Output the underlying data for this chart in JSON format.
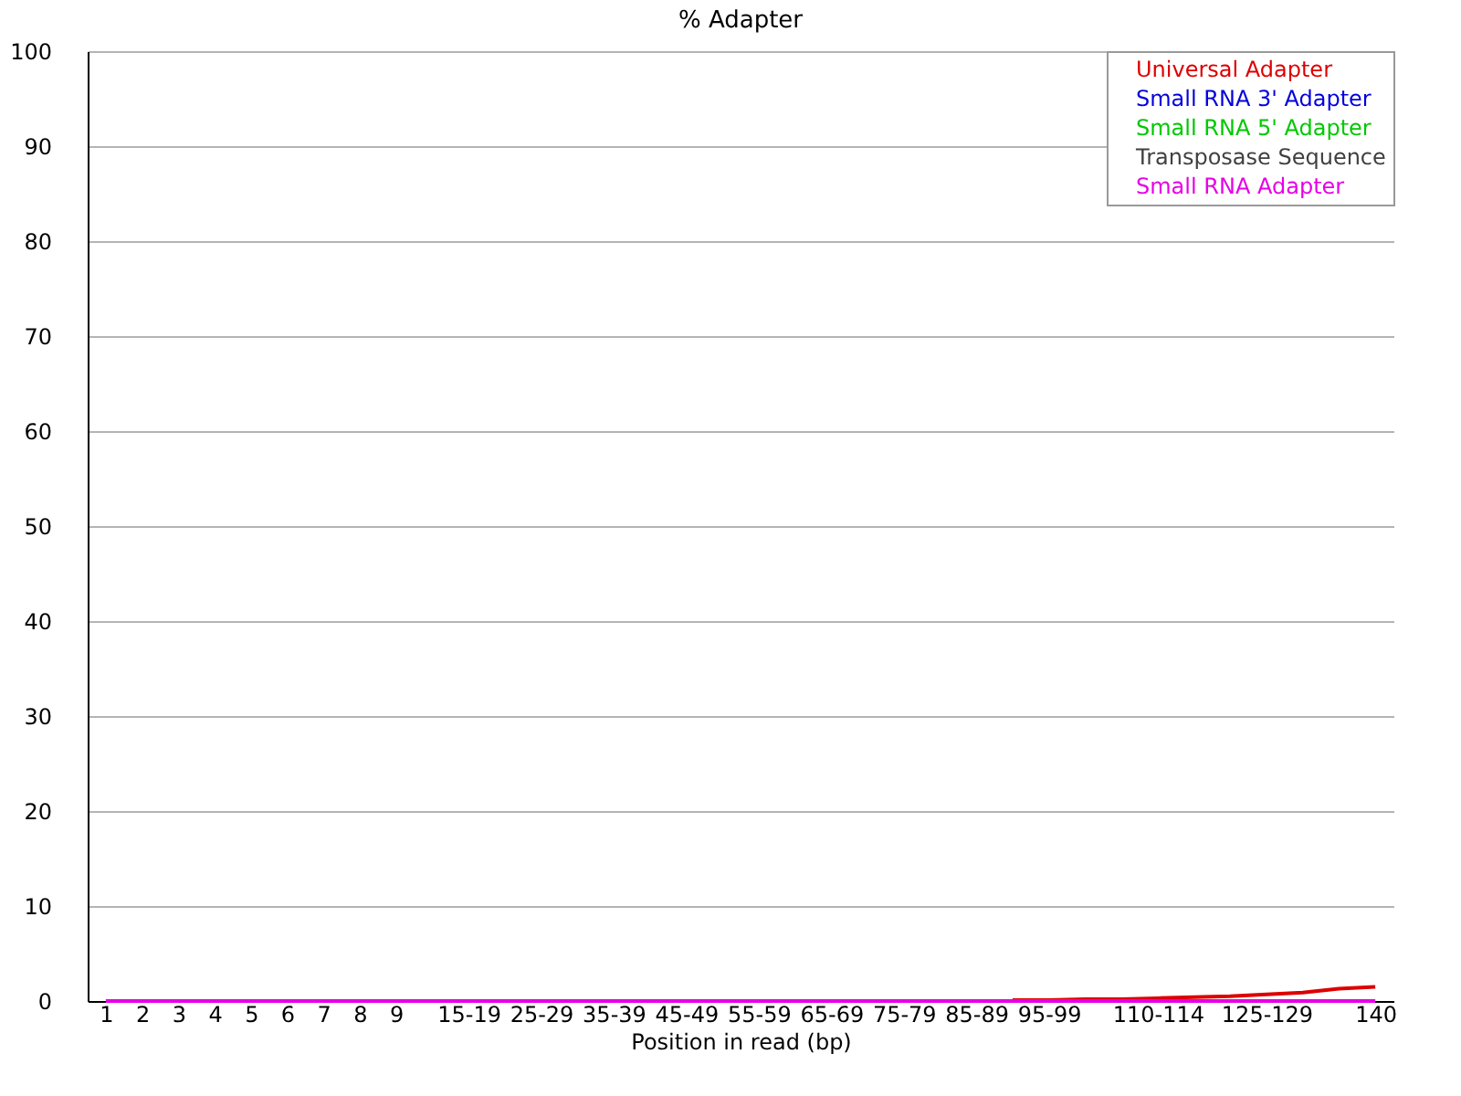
{
  "chart_data": {
    "type": "line",
    "title": "% Adapter",
    "xlabel": "Position in read (bp)",
    "categories": [
      "1",
      "2",
      "3",
      "4",
      "5",
      "6",
      "7",
      "8",
      "9",
      null,
      "15-19",
      null,
      "25-29",
      null,
      "35-39",
      null,
      "45-49",
      null,
      "55-59",
      null,
      "65-69",
      null,
      "75-79",
      null,
      "85-89",
      null,
      "95-99",
      null,
      null,
      "110-114",
      null,
      null,
      "125-129",
      null,
      null,
      "140"
    ],
    "series": [
      {
        "name": "Universal Adapter",
        "color": "#dd0000",
        "values": [
          null,
          null,
          null,
          null,
          null,
          null,
          null,
          null,
          null,
          null,
          null,
          null,
          null,
          null,
          null,
          null,
          null,
          null,
          null,
          null,
          null,
          null,
          null,
          null,
          null,
          0.1,
          0.1,
          0.2,
          0.2,
          0.3,
          0.4,
          0.5,
          0.7,
          0.9,
          1.3,
          1.5
        ]
      },
      {
        "name": "Small RNA 3' Adapter",
        "color": "#0000dd",
        "values": [
          null,
          null,
          null,
          null,
          null,
          null,
          null,
          null,
          null,
          null,
          null,
          null,
          null,
          null,
          null,
          null,
          null,
          null,
          null,
          null,
          null,
          null,
          null,
          null,
          null,
          null,
          null,
          null,
          null,
          null,
          null,
          null,
          null,
          null,
          null,
          null
        ]
      },
      {
        "name": "Small RNA 5' Adapter",
        "color": "#00c800",
        "values": [
          null,
          null,
          null,
          null,
          null,
          null,
          null,
          null,
          null,
          null,
          null,
          null,
          null,
          null,
          null,
          null,
          null,
          null,
          null,
          null,
          null,
          null,
          null,
          null,
          null,
          null,
          null,
          null,
          null,
          null,
          null,
          null,
          null,
          null,
          null,
          null
        ]
      },
      {
        "name": "Transposase Sequence",
        "color": "#404040",
        "values": [
          null,
          null,
          null,
          null,
          null,
          null,
          null,
          null,
          null,
          null,
          null,
          null,
          null,
          null,
          null,
          null,
          null,
          null,
          null,
          null,
          null,
          null,
          null,
          null,
          null,
          null,
          null,
          null,
          null,
          null,
          null,
          null,
          null,
          null,
          null,
          null
        ]
      },
      {
        "name": "Small RNA Adapter",
        "color": "#e600e6",
        "values": [
          0,
          0,
          0,
          0,
          0,
          0,
          0,
          0,
          0,
          0,
          0,
          0,
          0,
          0,
          0,
          0,
          0,
          0,
          0,
          0,
          0,
          0,
          0,
          0,
          0,
          0,
          0,
          0,
          0,
          0,
          0,
          0,
          0,
          0,
          0,
          0
        ]
      }
    ],
    "ylim": [
      0,
      100
    ],
    "yticks": [
      0,
      10,
      20,
      30,
      40,
      50,
      60,
      70,
      80,
      90,
      100
    ],
    "grid": "y",
    "legend": "top right",
    "marker": "none",
    "line_style": "solid"
  }
}
